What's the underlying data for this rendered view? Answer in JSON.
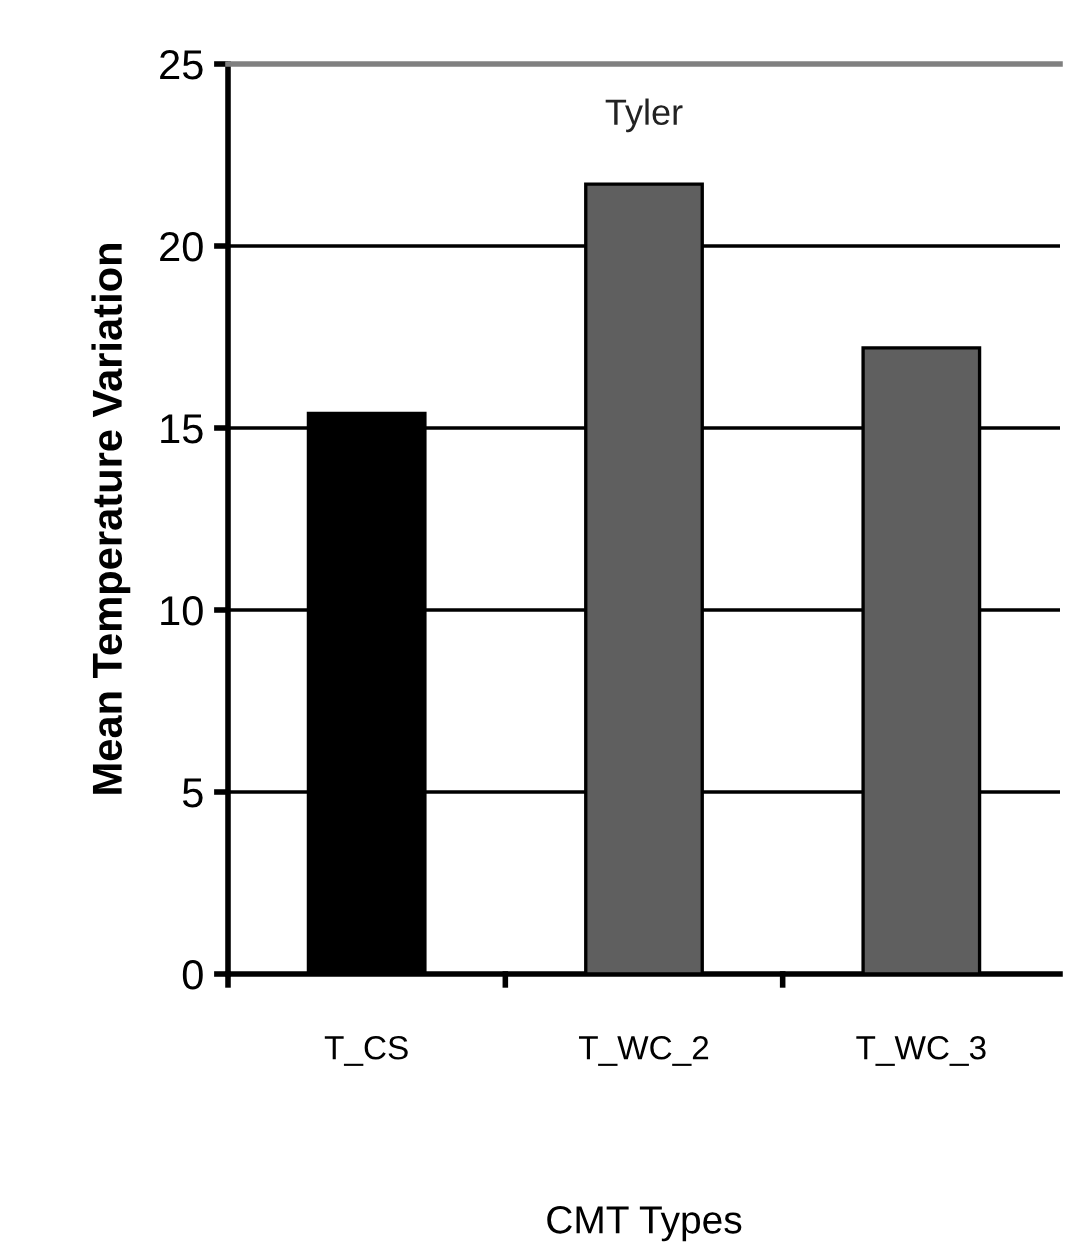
{
  "chart_data": {
    "type": "bar",
    "title": "Tyler",
    "xlabel": "CMT Types",
    "ylabel": "Mean Temperature Variation",
    "categories": [
      "T_CS",
      "T_WC_2",
      "T_WC_3"
    ],
    "values": [
      15.4,
      21.7,
      17.2
    ],
    "colors": [
      "#000000",
      "#5f5f5f",
      "#5f5f5f"
    ],
    "ylim": [
      0,
      25
    ],
    "yticks": [
      0,
      5,
      10,
      15,
      20,
      25
    ],
    "grid": "y"
  }
}
